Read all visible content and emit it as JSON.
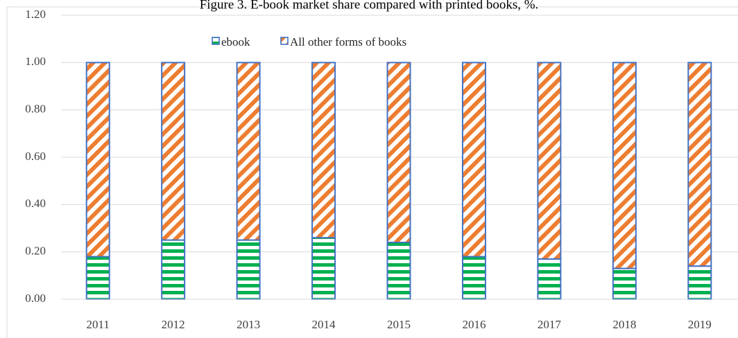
{
  "chart_data": {
    "type": "bar",
    "stacked": true,
    "title": "Figure 3. E-book market share compared with printed books, %.",
    "categories": [
      "2011",
      "2012",
      "2013",
      "2014",
      "2015",
      "2016",
      "2017",
      "2018",
      "2019"
    ],
    "series": [
      {
        "name": "ebook",
        "values": [
          0.18,
          0.25,
          0.25,
          0.26,
          0.24,
          0.18,
          0.17,
          0.13,
          0.14
        ],
        "pattern": "horizontal-stripes",
        "color": "#00b050"
      },
      {
        "name": "All other forms of books",
        "values": [
          0.82,
          0.75,
          0.75,
          0.74,
          0.76,
          0.82,
          0.83,
          0.87,
          0.86
        ],
        "pattern": "diagonal-stripes",
        "color": "#ed7d31"
      }
    ],
    "ylim": [
      0,
      1.2
    ],
    "yticks": [
      "0.00",
      "0.20",
      "0.40",
      "0.60",
      "0.80",
      "1.00",
      "1.20"
    ],
    "grid": true,
    "legend": "top-center",
    "border_color": "#4472c4"
  }
}
